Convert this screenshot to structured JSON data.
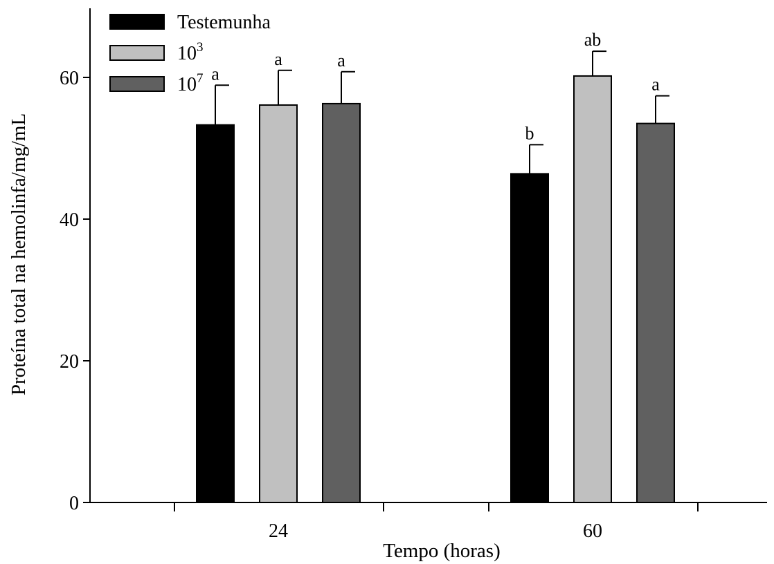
{
  "chart_data": {
    "type": "bar",
    "xlabel": "Tempo (horas)",
    "ylabel": "Proteína total na hemolinfa/mg/mL",
    "ylim": [
      0,
      70
    ],
    "yticks": [
      "0",
      "20",
      "40",
      "60"
    ],
    "categories": [
      "24",
      "60"
    ],
    "series": [
      {
        "name": "Testemunha",
        "color": "#000000",
        "values": [
          53.3,
          46.4
        ],
        "errors": [
          5.6,
          4.1
        ],
        "letters": [
          "a",
          "b"
        ]
      },
      {
        "name": "10",
        "superscript": "3",
        "color": "#c0c0c0",
        "values": [
          56.1,
          60.2
        ],
        "errors": [
          4.9,
          3.5
        ],
        "letters": [
          "a",
          "ab"
        ]
      },
      {
        "name": "10",
        "superscript": "7",
        "color": "#606060",
        "values": [
          56.3,
          53.5
        ],
        "errors": [
          4.5,
          3.9
        ],
        "letters": [
          "a",
          "a"
        ]
      }
    ],
    "legend_position": "top-left",
    "grid": false
  }
}
